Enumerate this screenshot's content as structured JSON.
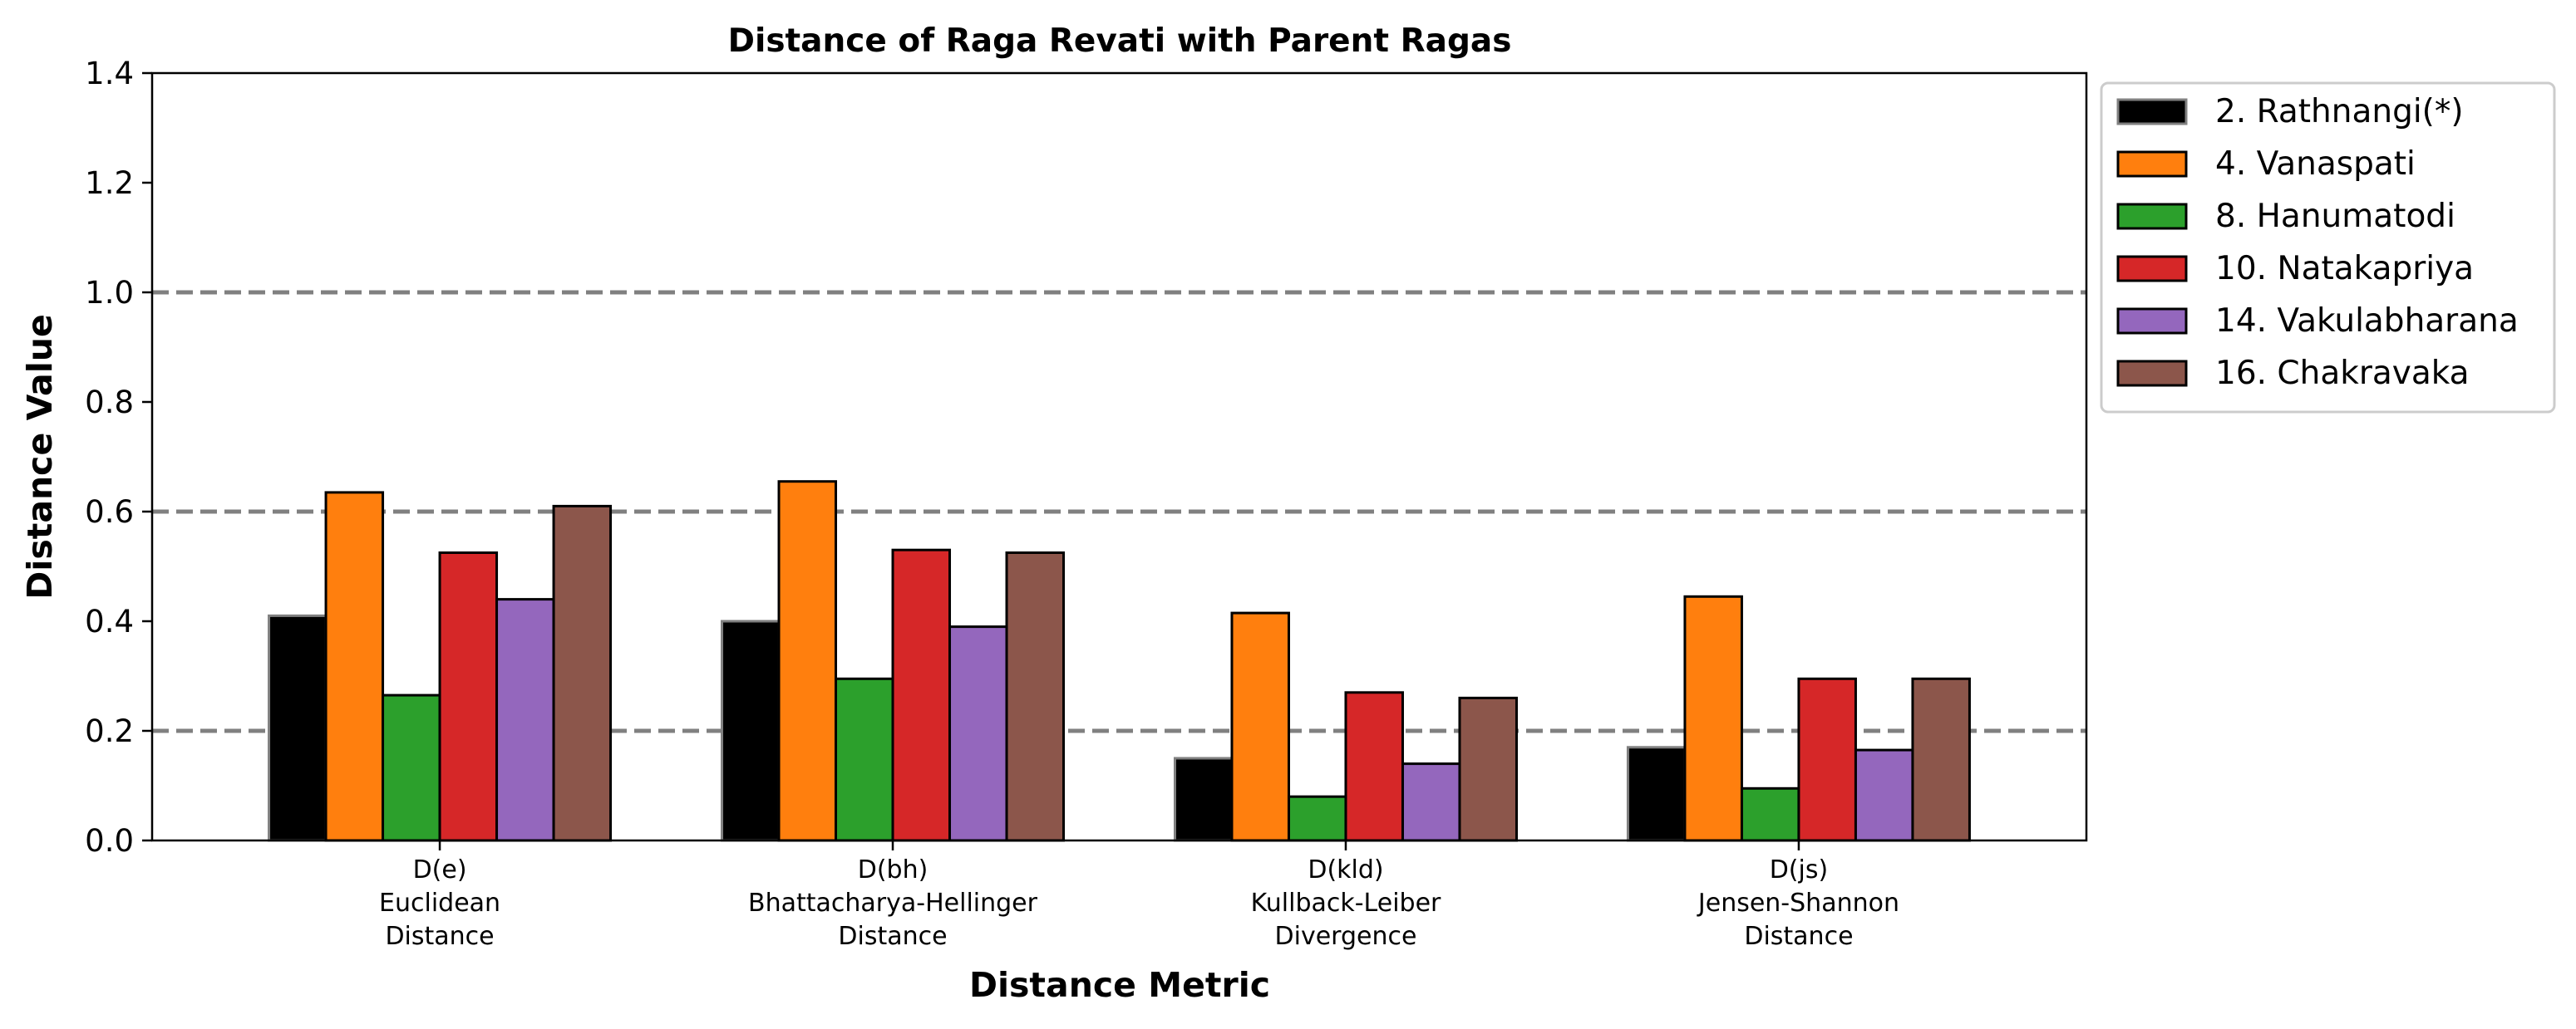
{
  "chart_data": {
    "type": "bar",
    "title": "Distance of Raga Revati with Parent Ragas",
    "xlabel": "Distance Metric",
    "ylabel": "Distance Value",
    "ylim": [
      0,
      1.4
    ],
    "yticks": [
      "0.0",
      "0.2",
      "0.4",
      "0.6",
      "0.8",
      "1.0",
      "1.2",
      "1.4"
    ],
    "reference_lines": [
      0.2,
      0.6,
      1.0
    ],
    "reference_line_color": "#808080",
    "grid": false,
    "legend_position": "outside-top-right",
    "categories": [
      [
        "D(e)",
        "Euclidean",
        "Distance"
      ],
      [
        "D(bh)",
        "Bhattacharya-Hellinger",
        "Distance"
      ],
      [
        "D(kld)",
        "Kullback-Leiber",
        "Divergence"
      ],
      [
        "D(js)",
        "Jensen-Shannon",
        "Distance"
      ]
    ],
    "series": [
      {
        "name": "2. Rathnangi(*)",
        "color": "#000000",
        "edge": "#808080",
        "values": [
          0.41,
          0.4,
          0.15,
          0.17
        ]
      },
      {
        "name": "4. Vanaspati",
        "color": "#ff7f0e",
        "edge": "#000000",
        "values": [
          0.635,
          0.655,
          0.415,
          0.445
        ]
      },
      {
        "name": "8. Hanumatodi",
        "color": "#2ca02c",
        "edge": "#000000",
        "values": [
          0.265,
          0.295,
          0.08,
          0.095
        ]
      },
      {
        "name": "10. Natakapriya",
        "color": "#d62728",
        "edge": "#000000",
        "values": [
          0.525,
          0.53,
          0.27,
          0.295
        ]
      },
      {
        "name": "14. Vakulabharana",
        "color": "#9467bd",
        "edge": "#000000",
        "values": [
          0.44,
          0.39,
          0.14,
          0.165
        ]
      },
      {
        "name": "16. Chakravaka",
        "color": "#8c564b",
        "edge": "#000000",
        "values": [
          0.61,
          0.525,
          0.26,
          0.295
        ]
      }
    ]
  }
}
